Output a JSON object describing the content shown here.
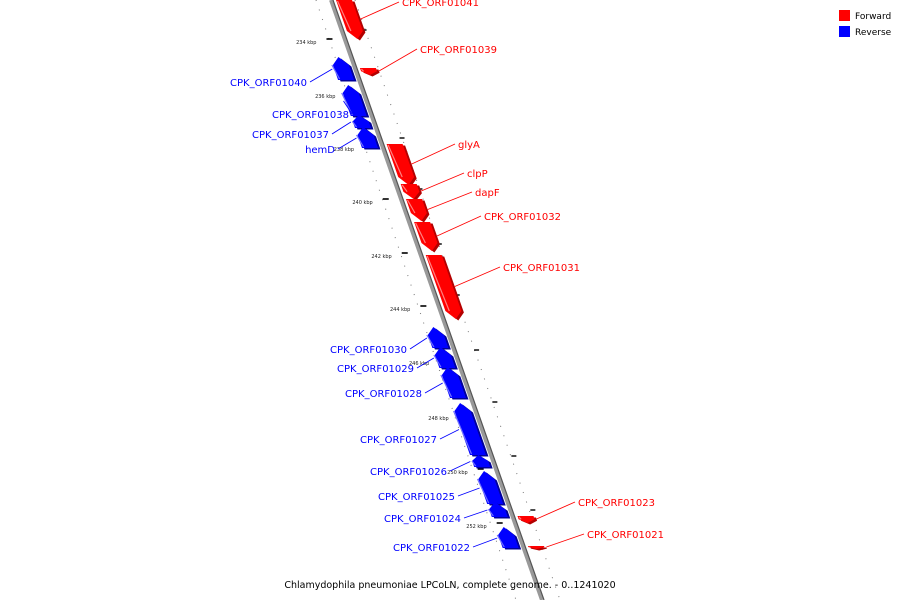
{
  "caption": "Chlamydophila pneumoniae LPCoLN, complete genome. - 0..1241020",
  "legend": [
    {
      "label": "Forward",
      "color": "#ff0000"
    },
    {
      "label": "Reverse",
      "color": "#0000ff"
    }
  ],
  "ticks": [
    "234 kbp",
    "236 kbp",
    "238 kbp",
    "240 kbp",
    "242 kbp",
    "244 kbp",
    "246 kbp",
    "248 kbp",
    "250 kbp",
    "252 kbp"
  ],
  "features": [
    {
      "name": "CPK_ORF01041",
      "strand": "forward"
    },
    {
      "name": "CPK_ORF01039",
      "strand": "forward"
    },
    {
      "name": "CPK_ORF01040",
      "strand": "reverse"
    },
    {
      "name": "CPK_ORF01038",
      "strand": "reverse"
    },
    {
      "name": "CPK_ORF01037",
      "strand": "reverse"
    },
    {
      "name": "hemD",
      "strand": "reverse"
    },
    {
      "name": "glyA",
      "strand": "forward"
    },
    {
      "name": "clpP",
      "strand": "forward"
    },
    {
      "name": "dapF",
      "strand": "forward"
    },
    {
      "name": "CPK_ORF01032",
      "strand": "forward"
    },
    {
      "name": "CPK_ORF01031",
      "strand": "forward"
    },
    {
      "name": "CPK_ORF01030",
      "strand": "reverse"
    },
    {
      "name": "CPK_ORF01029",
      "strand": "reverse"
    },
    {
      "name": "CPK_ORF01028",
      "strand": "reverse"
    },
    {
      "name": "CPK_ORF01027",
      "strand": "reverse"
    },
    {
      "name": "CPK_ORF01026",
      "strand": "reverse"
    },
    {
      "name": "CPK_ORF01025",
      "strand": "reverse"
    },
    {
      "name": "CPK_ORF01024",
      "strand": "reverse"
    },
    {
      "name": "CPK_ORF01023",
      "strand": "forward"
    },
    {
      "name": "CPK_ORF01022",
      "strand": "reverse"
    },
    {
      "name": "CPK_ORF01021",
      "strand": "forward"
    }
  ]
}
